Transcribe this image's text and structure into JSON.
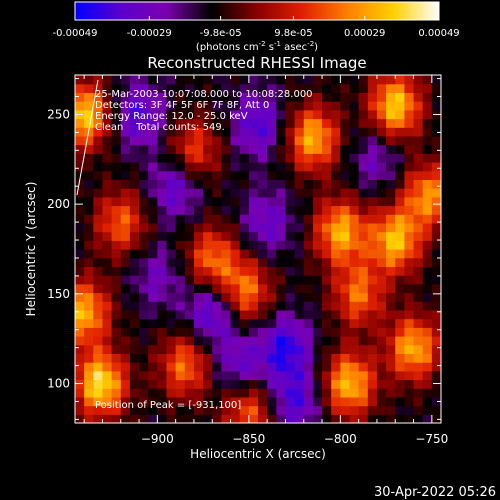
{
  "colorbar": {
    "tick_labels": [
      "-0.00049",
      "-0.00029",
      "-9.8e-05",
      "9.8e-05",
      "0.00029",
      "0.00049"
    ],
    "units_text": "(photons cm",
    "units_exp1": "-2",
    "units_mid1": " s",
    "units_exp2": "-1",
    "units_mid2": " asec",
    "units_exp3": "-2",
    "units_close": ")",
    "stops": [
      "#0000ff",
      "#5a00cc",
      "#7a00b0",
      "#000000",
      "#8a0000",
      "#e02000",
      "#ff8000",
      "#ffd000",
      "#ffffff"
    ]
  },
  "chart_data": {
    "type": "heatmap",
    "title": "Reconstructed RHESSI Image",
    "xlabel": "Heliocentric X (arcsec)",
    "ylabel": "Heliocentric Y (arcsec)",
    "xlim": [
      -945,
      -745
    ],
    "ylim": [
      78,
      272
    ],
    "xticks": [
      -900,
      -850,
      -800,
      -750
    ],
    "yticks": [
      100,
      150,
      200,
      250
    ],
    "value_range": [
      -0.00049,
      0.00049
    ],
    "annotations": {
      "line1": "25-Mar-2003 10:07:08.000 to 10:08:28.000",
      "line2": "Detectors: 3F 4F 5F 6F 7F 8F, Att 0",
      "line3": "Energy Range: 12.0 - 25.0 keV",
      "line4": "Clean    Total counts: 549.",
      "peak": "Position of Peak = [-931,100]"
    },
    "peak_position": [
      -931,
      100
    ],
    "grid_resolution": [
      40,
      40
    ],
    "bright_sources": [
      {
        "x": -931,
        "y": 100,
        "intensity": 0.00049
      },
      {
        "x": -940,
        "y": 140,
        "intensity": 0.0004
      },
      {
        "x": -940,
        "y": 250,
        "intensity": 0.00045
      },
      {
        "x": -920,
        "y": 190,
        "intensity": 0.00028
      },
      {
        "x": -880,
        "y": 230,
        "intensity": 0.00025
      },
      {
        "x": -885,
        "y": 110,
        "intensity": 0.0003
      },
      {
        "x": -870,
        "y": 170,
        "intensity": 0.0003
      },
      {
        "x": -852,
        "y": 152,
        "intensity": 0.00032
      },
      {
        "x": -850,
        "y": 85,
        "intensity": 0.00028
      },
      {
        "x": -815,
        "y": 237,
        "intensity": 0.0004
      },
      {
        "x": -800,
        "y": 185,
        "intensity": 0.0004
      },
      {
        "x": -790,
        "y": 150,
        "intensity": 0.0003
      },
      {
        "x": -795,
        "y": 100,
        "intensity": 0.00042
      },
      {
        "x": -770,
        "y": 255,
        "intensity": 0.00045
      },
      {
        "x": -770,
        "y": 180,
        "intensity": 0.00042
      },
      {
        "x": -760,
        "y": 120,
        "intensity": 0.0004
      },
      {
        "x": -752,
        "y": 205,
        "intensity": 0.00035
      }
    ],
    "dim_regions": [
      {
        "x": -910,
        "y": 250,
        "intensity": -0.0003
      },
      {
        "x": -890,
        "y": 210,
        "intensity": -0.00028
      },
      {
        "x": -870,
        "y": 140,
        "intensity": -0.00032
      },
      {
        "x": -845,
        "y": 245,
        "intensity": -0.0003
      },
      {
        "x": -830,
        "y": 120,
        "intensity": -0.00035
      },
      {
        "x": -840,
        "y": 190,
        "intensity": -0.00025
      },
      {
        "x": -825,
        "y": 90,
        "intensity": -0.0003
      },
      {
        "x": -855,
        "y": 110,
        "intensity": -0.00025
      },
      {
        "x": -900,
        "y": 160,
        "intensity": -0.0002
      },
      {
        "x": -780,
        "y": 225,
        "intensity": -0.0002
      }
    ]
  },
  "footer": {
    "timestamp": "30-Apr-2022 05:26"
  }
}
